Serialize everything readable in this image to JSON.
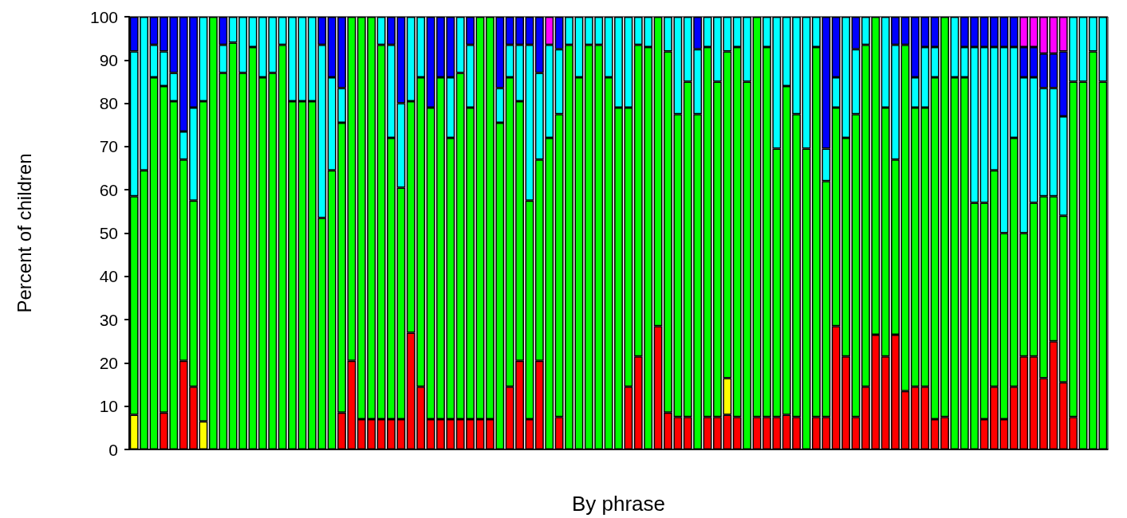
{
  "chart_data": {
    "type": "bar",
    "stacked": true,
    "xlabel": "By phrase",
    "ylabel": "Percent of children",
    "ylim": [
      0,
      100
    ],
    "yticks": [
      0,
      10,
      20,
      30,
      40,
      50,
      60,
      70,
      80,
      90,
      100
    ],
    "grid": false,
    "categories": [
      null,
      null,
      null,
      null,
      null,
      null,
      null,
      null,
      null,
      null,
      null,
      null,
      null,
      null,
      null,
      null,
      null,
      null,
      null,
      null,
      null,
      null,
      null,
      null,
      null,
      null,
      null,
      null,
      null,
      null,
      null,
      null,
      null,
      null,
      null,
      null,
      null,
      null,
      null,
      null,
      null,
      null,
      null,
      null,
      null,
      null,
      null,
      null,
      null,
      null,
      null,
      null,
      null,
      null,
      null,
      null,
      null,
      null,
      null,
      null,
      null,
      null,
      null,
      null,
      null,
      null,
      null,
      null,
      null,
      null,
      null,
      null,
      null,
      null,
      null,
      null,
      null,
      null,
      null,
      null,
      null,
      null,
      null,
      null,
      null,
      null,
      null,
      null,
      null,
      null,
      null,
      null,
      null,
      null,
      null,
      null,
      null,
      null,
      null
    ],
    "series": [
      {
        "color": "#ff0000",
        "values": [
          null,
          null,
          null,
          8.5,
          null,
          20.5,
          14.5,
          null,
          null,
          null,
          null,
          null,
          null,
          null,
          null,
          null,
          null,
          null,
          null,
          null,
          null,
          8.5,
          20.5,
          7,
          7,
          7,
          7,
          7,
          27,
          14.5,
          7,
          7,
          7,
          7,
          7,
          7,
          7,
          null,
          14.5,
          20.5,
          7,
          20.5,
          null,
          7.5,
          null,
          null,
          null,
          null,
          null,
          null,
          14.5,
          21.5,
          null,
          28.5,
          8.5,
          7.5,
          7.5,
          null,
          7.5,
          7.5,
          8,
          7.5,
          null,
          7.5,
          7.5,
          7.5,
          8,
          7.5,
          null,
          7.5,
          7.5,
          28.5,
          21.5,
          7.5,
          14.5,
          26.5,
          21.5,
          26.5,
          13.5,
          14.5,
          14.5,
          7,
          7.5,
          null,
          null,
          null,
          7,
          14.5,
          7,
          14.5,
          21.5,
          21.5,
          16.5,
          25,
          15.5,
          7.5,
          null,
          null,
          null
        ]
      },
      {
        "color": "#ffff00",
        "values": [
          8,
          null,
          null,
          null,
          null,
          null,
          null,
          6.5,
          null,
          null,
          null,
          null,
          null,
          null,
          null,
          null,
          null,
          null,
          null,
          null,
          null,
          null,
          null,
          null,
          null,
          null,
          null,
          null,
          null,
          null,
          null,
          null,
          null,
          null,
          null,
          null,
          null,
          null,
          null,
          null,
          null,
          null,
          null,
          null,
          null,
          null,
          null,
          null,
          null,
          null,
          null,
          null,
          null,
          null,
          null,
          null,
          null,
          null,
          null,
          null,
          8.5,
          null,
          null,
          null,
          null,
          null,
          null,
          null,
          null,
          null,
          null,
          null,
          null,
          null,
          null,
          null,
          null,
          null,
          null,
          null,
          null,
          null,
          null,
          null,
          null,
          null,
          null,
          null,
          null,
          null,
          null,
          null,
          null,
          null,
          null,
          null,
          null,
          null,
          null
        ]
      },
      {
        "color": "#00ff00",
        "values": [
          50.5,
          64.5,
          86,
          75.5,
          80.5,
          46.5,
          43,
          74,
          100,
          87,
          94,
          87,
          93,
          86,
          87,
          93.5,
          80.5,
          80.5,
          80.5,
          53.5,
          64.5,
          67,
          79.5,
          93,
          93,
          86.5,
          65,
          53.5,
          53.5,
          71.5,
          72,
          79,
          65,
          80,
          72,
          93,
          93,
          75.5,
          71.5,
          60,
          50.5,
          46.5,
          72,
          70,
          93.5,
          86,
          93.5,
          93.5,
          86,
          79,
          64.5,
          72,
          93,
          71.5,
          83.5,
          70,
          77.5,
          77.5,
          85.5,
          77.5,
          75.5,
          85.5,
          85,
          92.5,
          85.5,
          62,
          76,
          70,
          69.5,
          85.5,
          54.5,
          50.5,
          50.5,
          70,
          79,
          73.5,
          57.5,
          40.5,
          80,
          64.5,
          64.5,
          79,
          92.5,
          86,
          86,
          57,
          50,
          50,
          43,
          57.5,
          28.5,
          35.5,
          42,
          33.5,
          38.5,
          77.5,
          85,
          92,
          85
        ]
      },
      {
        "color": "#00ffff",
        "values": [
          33.5,
          35.5,
          7.5,
          8,
          6.5,
          6.5,
          21.5,
          19.5,
          null,
          6.5,
          6,
          13,
          7,
          14,
          13,
          6.5,
          19.5,
          19.5,
          19.5,
          40,
          21.5,
          8,
          null,
          null,
          null,
          6.5,
          21.5,
          19.5,
          19.5,
          14,
          null,
          null,
          14,
          13,
          14.5,
          null,
          null,
          8,
          7.5,
          13,
          36,
          20,
          21.5,
          15,
          6.5,
          14,
          6.5,
          6.5,
          14,
          21,
          21,
          6.5,
          7,
          null,
          8,
          22.5,
          15,
          15,
          7,
          15,
          8,
          7,
          15,
          null,
          7,
          30.5,
          16,
          22.5,
          30.5,
          7,
          7.5,
          7,
          28,
          15,
          6.5,
          null,
          21,
          26.5,
          null,
          7,
          14,
          7,
          null,
          14,
          7,
          36,
          36,
          28.5,
          43,
          21,
          36,
          29,
          25,
          25,
          23,
          15,
          15,
          8,
          15
        ]
      },
      {
        "color": "#0000ff",
        "values": [
          8,
          null,
          6.5,
          8,
          13,
          26.5,
          21,
          null,
          null,
          6.5,
          null,
          null,
          null,
          null,
          null,
          null,
          null,
          null,
          null,
          6.5,
          14,
          16.5,
          null,
          null,
          null,
          null,
          6.5,
          20,
          null,
          null,
          21,
          14,
          14,
          null,
          6.5,
          null,
          null,
          16.5,
          6.5,
          6.5,
          6.5,
          13,
          null,
          7.5,
          null,
          null,
          null,
          null,
          null,
          null,
          null,
          null,
          null,
          null,
          null,
          null,
          null,
          7.5,
          null,
          null,
          null,
          null,
          null,
          null,
          null,
          null,
          null,
          null,
          null,
          null,
          30.5,
          14,
          null,
          7.5,
          null,
          null,
          null,
          6.5,
          6.5,
          14,
          7,
          7,
          null,
          null,
          7,
          7,
          7,
          7,
          7,
          7,
          7,
          7,
          8,
          8,
          15,
          null,
          null,
          null,
          null
        ]
      },
      {
        "color": "#ff00ff",
        "values": [
          null,
          null,
          null,
          null,
          null,
          null,
          null,
          null,
          null,
          null,
          null,
          null,
          null,
          null,
          null,
          null,
          null,
          null,
          null,
          null,
          null,
          null,
          null,
          null,
          null,
          null,
          null,
          null,
          null,
          null,
          null,
          null,
          null,
          null,
          null,
          null,
          null,
          null,
          null,
          null,
          null,
          null,
          6.5,
          null,
          null,
          null,
          null,
          null,
          null,
          null,
          null,
          null,
          null,
          null,
          null,
          null,
          null,
          null,
          null,
          null,
          null,
          null,
          null,
          null,
          null,
          null,
          null,
          null,
          null,
          null,
          null,
          null,
          null,
          null,
          null,
          null,
          null,
          null,
          null,
          null,
          null,
          null,
          null,
          null,
          null,
          null,
          null,
          null,
          null,
          null,
          7,
          7,
          8.5,
          8.5,
          8,
          null,
          null,
          null,
          null
        ]
      }
    ]
  }
}
